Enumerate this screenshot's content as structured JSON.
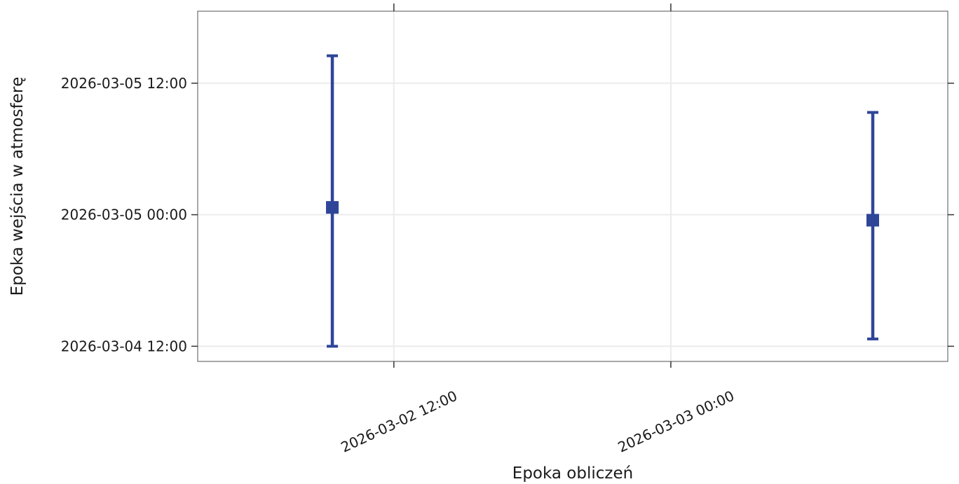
{
  "chart_data": {
    "type": "scatter",
    "subtype": "errorbar",
    "title": "",
    "xlabel": "Epoka obliczeń",
    "ylabel": "Epoka wejścia w atmosferę",
    "x_axis": {
      "type": "datetime",
      "range": [
        "2026-03-02 03:30",
        "2026-03-03 12:00"
      ],
      "ticks": [
        "2026-03-02 12:00",
        "2026-03-03 00:00"
      ],
      "tick_labels": [
        "2026-03-02  12:00",
        "2026-03-03  00:00"
      ],
      "tick_label_rotation_deg": -25
    },
    "y_axis": {
      "type": "datetime",
      "range": [
        "2026-03-04 10:37",
        "2026-03-05 18:34"
      ],
      "ticks": [
        "2026-03-04 12:00",
        "2026-03-05 00:00",
        "2026-03-05 12:00"
      ],
      "tick_labels": [
        "2026-03-04  12:00",
        "2026-03-05  00:00",
        "2026-03-05  12:00"
      ]
    },
    "grid": true,
    "legend": "none",
    "marker": "square",
    "color": "#2e4598",
    "points": [
      {
        "x": "2026-03-02 09:20",
        "y": "2026-03-05 00:40",
        "y_low": "2026-03-04 12:00",
        "y_high": "2026-03-05 14:30"
      },
      {
        "x": "2026-03-03 08:45",
        "y": "2026-03-04 23:30",
        "y_low": "2026-03-04 12:40",
        "y_high": "2026-03-05 09:20"
      }
    ]
  }
}
